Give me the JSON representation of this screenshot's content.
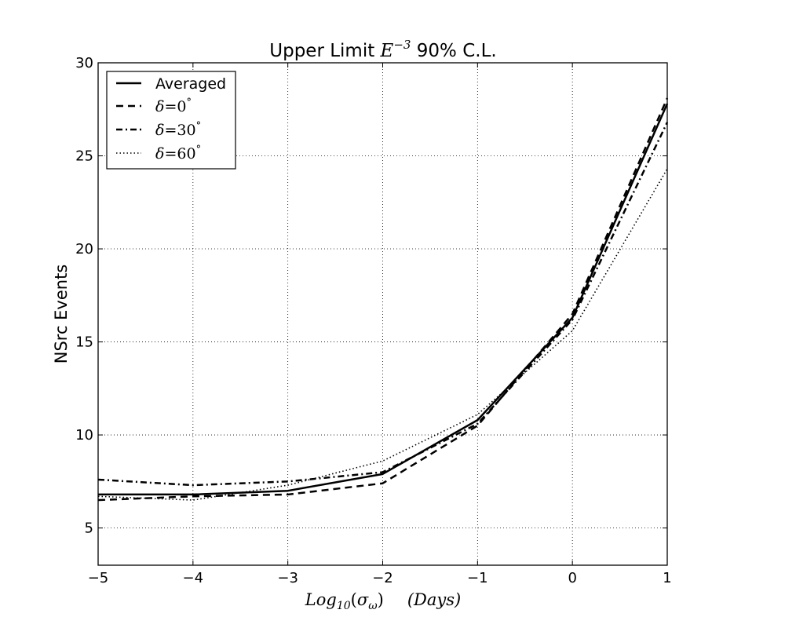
{
  "chart_data": {
    "type": "line",
    "title": {
      "prefix": "Upper Limit ",
      "math_base": "E",
      "math_exp": "−3",
      "suffix": " 90% C.L."
    },
    "xlabel": {
      "main": "Log",
      "sub": "10",
      "arg_open": "(",
      "sigma": "σ",
      "sigma_sub": "ω",
      "arg_close": ")",
      "units": "(Days)"
    },
    "ylabel": "NSrc Events",
    "xlim": [
      -5,
      1
    ],
    "ylim": [
      3,
      30
    ],
    "x_ticks": [
      -5,
      -4,
      -3,
      -2,
      -1,
      0,
      1
    ],
    "x_tick_labels": [
      "−5",
      "−4",
      "−3",
      "−2",
      "−1",
      "0",
      "1"
    ],
    "y_ticks": [
      5,
      10,
      15,
      20,
      25,
      30
    ],
    "y_tick_labels": [
      "5",
      "10",
      "15",
      "20",
      "25",
      "30"
    ],
    "grid": true,
    "legend_position": "top-left",
    "x": [
      -5,
      -4,
      -3,
      -2,
      -1,
      0,
      1
    ],
    "series": [
      {
        "name": "Averaged",
        "style": "solid",
        "values": [
          6.8,
          6.8,
          7.0,
          7.9,
          10.8,
          16.3,
          27.8
        ]
      },
      {
        "name": "δ=0°",
        "name_main": "δ",
        "name_eq": "=0",
        "name_deg": "°",
        "style": "dashed",
        "values": [
          6.5,
          6.7,
          6.8,
          7.4,
          10.5,
          16.5,
          28.1
        ]
      },
      {
        "name": "δ=30°",
        "name_main": "δ",
        "name_eq": "=30",
        "name_deg": "°",
        "style": "dashdot",
        "values": [
          7.6,
          7.3,
          7.5,
          8.0,
          10.6,
          16.2,
          26.8
        ]
      },
      {
        "name": "δ=60°",
        "name_main": "δ",
        "name_eq": "=60",
        "name_deg": "°",
        "style": "dotted",
        "values": [
          6.7,
          6.5,
          7.3,
          8.6,
          11.1,
          15.6,
          24.3
        ]
      }
    ]
  }
}
